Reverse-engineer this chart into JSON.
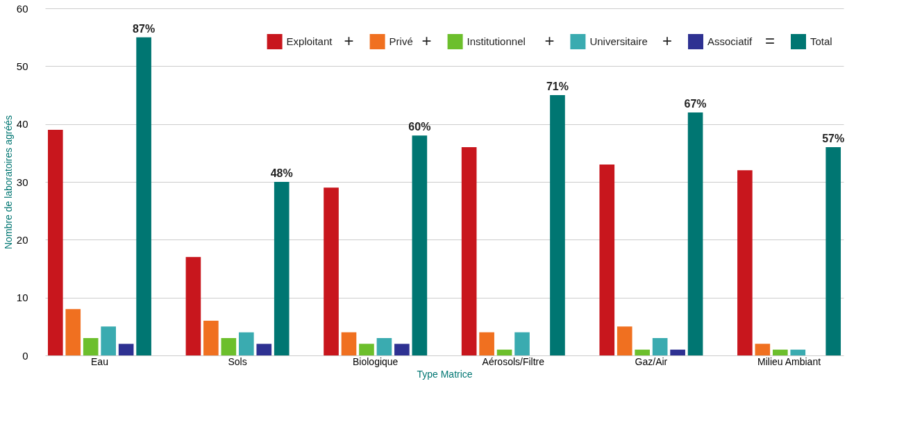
{
  "chart_data": {
    "type": "bar",
    "xlabel": "Type Matrice",
    "ylabel": "Nombre de laboratoires agréés",
    "categories": [
      "Eau",
      "Sols",
      "Biologique",
      "Aérosols/Filtre",
      "Gaz/Air",
      "Milieu Ambiant"
    ],
    "series": [
      {
        "name": "Exploitant",
        "color": "#c8161d",
        "values": [
          39,
          17,
          29,
          36,
          33,
          32
        ]
      },
      {
        "name": "Privé",
        "color": "#f07020",
        "values": [
          8,
          6,
          4,
          4,
          5,
          2
        ]
      },
      {
        "name": "Institutionnel",
        "color": "#6cbf2c",
        "values": [
          3,
          3,
          2,
          1,
          1,
          1
        ]
      },
      {
        "name": "Universitaire",
        "color": "#3aabb0",
        "values": [
          5,
          4,
          3,
          4,
          3,
          1
        ]
      },
      {
        "name": "Associatif",
        "color": "#2e3192",
        "values": [
          2,
          2,
          2,
          null,
          1,
          null
        ]
      },
      {
        "name": "Total",
        "color": "#007672",
        "values": [
          55,
          30,
          38,
          45,
          42,
          36
        ]
      }
    ],
    "annotations": [
      "+",
      "+",
      "+",
      "+",
      "=",
      "87%",
      "48%",
      "60%",
      "71%",
      "67%",
      "57%"
    ],
    "ylim": [
      0,
      60
    ],
    "yticks": [
      0,
      10,
      20,
      30,
      40,
      50,
      60
    ],
    "grid": "y",
    "legend": "top right"
  }
}
